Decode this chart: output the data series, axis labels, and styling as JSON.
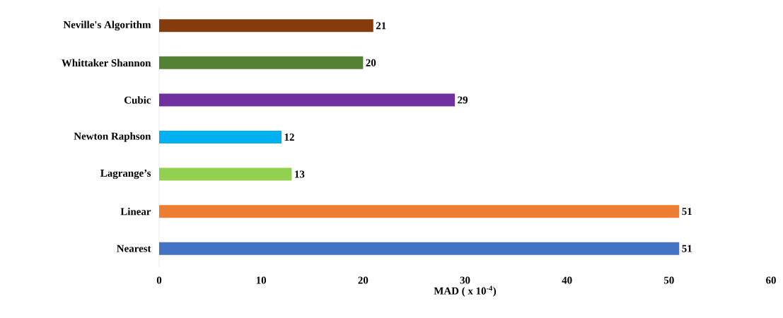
{
  "chart_data": {
    "type": "bar",
    "orientation": "horizontal",
    "xlabel": "MAD ( x 10$^{-4}$)",
    "categories": [
      "Neville's Algorithm",
      "Whittaker Shannon",
      "Cubic",
      "Newton Raphson",
      "Lagrange’s",
      "Linear",
      "Nearest"
    ],
    "values": [
      21,
      20,
      29,
      12,
      13,
      51,
      51
    ],
    "colors": [
      "#843c0c",
      "#548235",
      "#7030a0",
      "#00b0f0",
      "#92d050",
      "#ed7d31",
      "#4472c4"
    ],
    "xlim": [
      0,
      60
    ],
    "xticks": [
      0,
      10,
      20,
      30,
      40,
      50,
      60
    ],
    "data_labels": true,
    "grid": false
  }
}
